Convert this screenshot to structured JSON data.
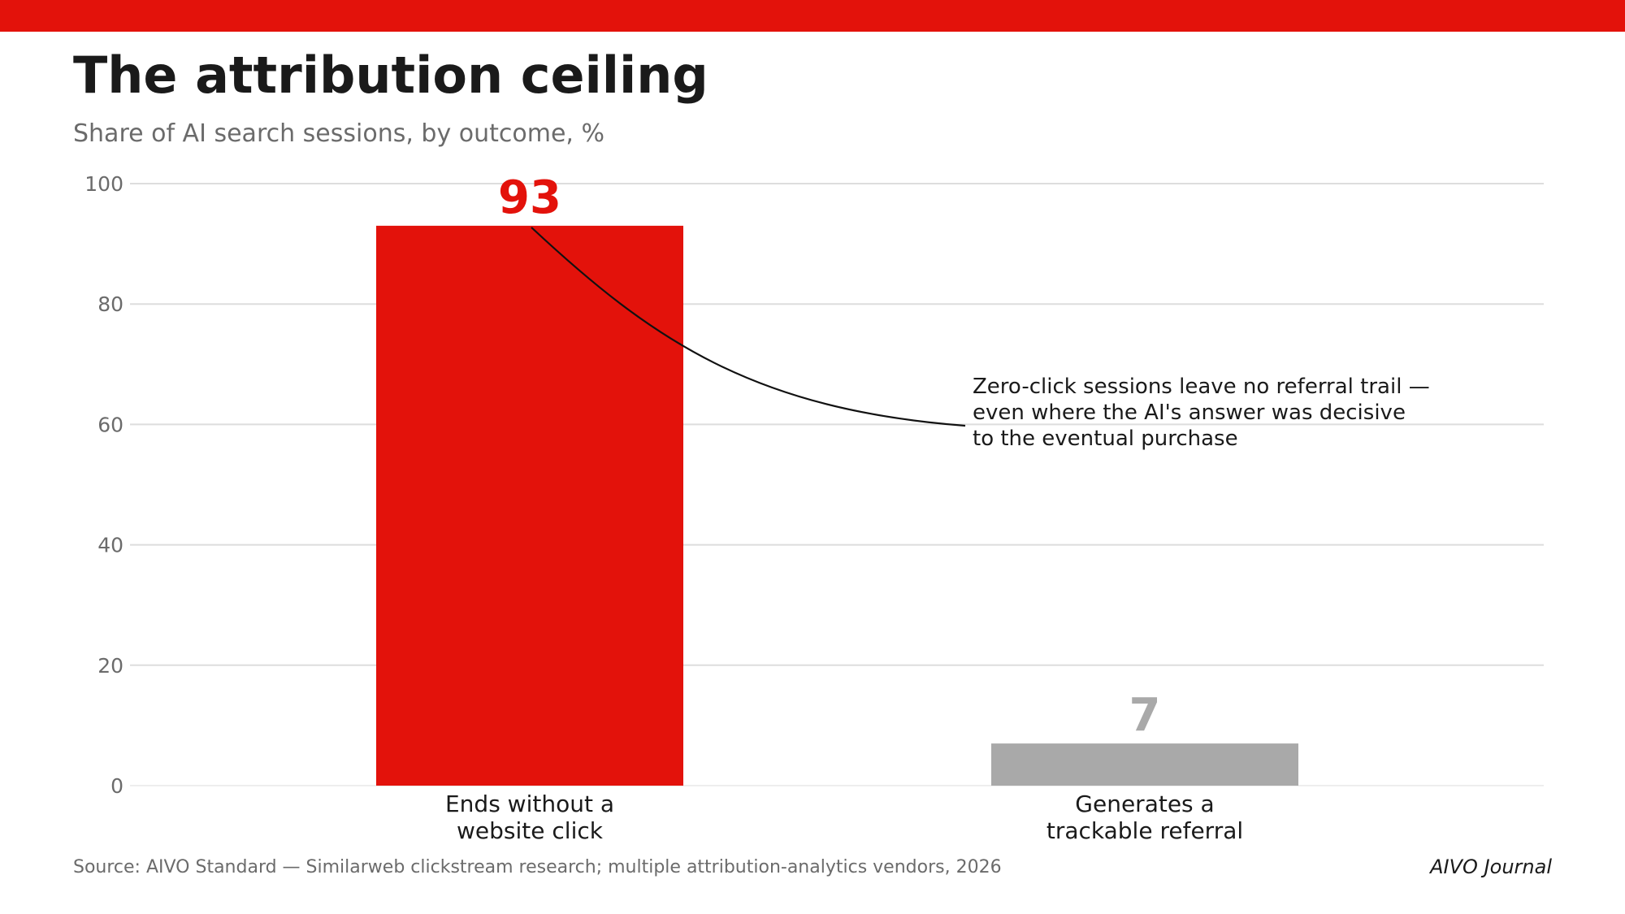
{
  "colors": {
    "accent": "#e3120b",
    "secondary_bar": "#a9a9a9",
    "grid": "#dddddd",
    "axis_text": "#6b6b6b",
    "title_text": "#1a1a1a"
  },
  "header": {
    "title": "The attribution ceiling",
    "subtitle": "Share of AI search sessions, by outcome, %"
  },
  "chart_data": {
    "type": "bar",
    "title": "The attribution ceiling",
    "subtitle": "Share of AI search sessions, by outcome, %",
    "categories": [
      [
        "Ends without a",
        "website click"
      ],
      [
        "Generates a",
        "trackable referral"
      ]
    ],
    "values": [
      93,
      7
    ],
    "bar_colors": [
      "#e3120b",
      "#a9a9a9"
    ],
    "ylim": [
      0,
      100
    ],
    "yticks": [
      0,
      20,
      40,
      60,
      80,
      100
    ],
    "grid": true,
    "annotation": {
      "target_category_index": 0,
      "lines": [
        "Zero-click sessions leave no referral trail —",
        "even where the AI's answer was decisive",
        "to the eventual purchase"
      ]
    }
  },
  "footer": {
    "source": "Source: AIVO Standard — Similarweb clickstream research; multiple attribution-analytics vendors, 2026",
    "brand": "AIVO Journal"
  }
}
